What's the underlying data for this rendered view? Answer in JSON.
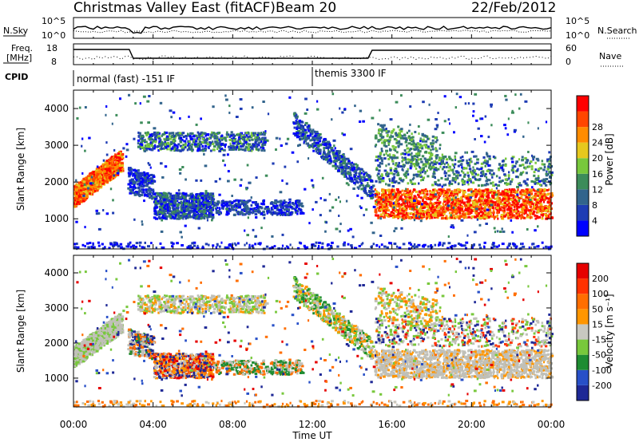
{
  "header": {
    "title": "Christmas Valley East (fitACF)",
    "beam": "Beam 20",
    "date": "22/Feb/2012"
  },
  "top_panels": {
    "nsky_label": "N.Sky",
    "nsky_ticks": [
      "10^5",
      "10^0"
    ],
    "nsearch_label": "N.Search",
    "freq_label_1": "Freq.",
    "freq_label_2": "[MHz]",
    "freq_ticks": [
      "18",
      "8"
    ],
    "nave_ticks": [
      "60",
      "0"
    ],
    "nave_label": "Nave",
    "cpid_label": "CPID",
    "cpid_modes": [
      "normal (fast) -151 IF",
      "themis 3300 IF"
    ]
  },
  "chart_data": [
    {
      "type": "heatmap",
      "name": "power",
      "xlabel": "Time UT",
      "ylabel": "Slant Range [km]",
      "xlim": [
        0,
        24
      ],
      "ylim": [
        180,
        4500
      ],
      "x_ticks": [
        "00:00",
        "04:00",
        "08:00",
        "12:00",
        "16:00",
        "20:00",
        "00:00"
      ],
      "y_ticks": [
        1000,
        2000,
        3000,
        4000
      ],
      "colorbar_label": "Power [dB]",
      "colorbar_ticks": [
        "4",
        "8",
        "12",
        "16",
        "20",
        "24",
        "28"
      ],
      "colorbar_colors": [
        "#0000ff",
        "#1e3cb4",
        "#32648c",
        "#3c8c5a",
        "#78c83c",
        "#e6c81e",
        "#ff8c00",
        "#ff4600",
        "#ff0000"
      ]
    },
    {
      "type": "heatmap",
      "name": "velocity",
      "xlabel": "Time UT",
      "ylabel": "Slant Range [km]",
      "xlim": [
        0,
        24
      ],
      "ylim": [
        180,
        4500
      ],
      "x_ticks": [
        "00:00",
        "04:00",
        "08:00",
        "12:00",
        "16:00",
        "20:00",
        "00:00"
      ],
      "y_ticks": [
        1000,
        2000,
        3000,
        4000
      ],
      "colorbar_label": "Velocity [m s⁻¹]",
      "colorbar_ticks": [
        "200",
        "100",
        "50",
        "15",
        "-15",
        "-50",
        "-100",
        "-200"
      ],
      "colorbar_colors": [
        "#1e2896",
        "#2850c8",
        "#1e8c32",
        "#78c83c",
        "#c8c8c0",
        "#ff9600",
        "#ff6e00",
        "#ff3200",
        "#e60000"
      ]
    }
  ],
  "colors": {
    "frame": "#000000",
    "ground_scatter": "#c0c0b8"
  }
}
